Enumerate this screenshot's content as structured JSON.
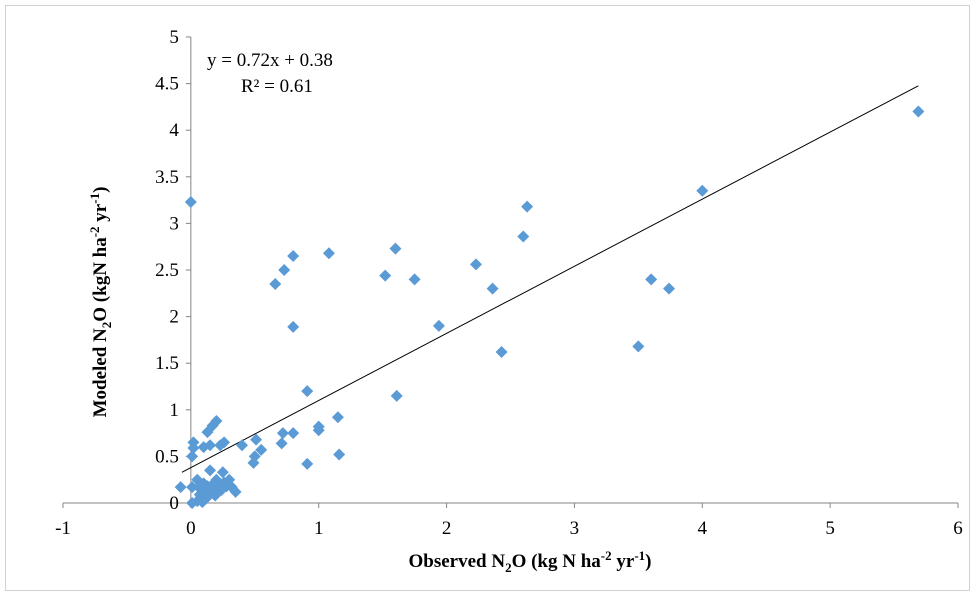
{
  "chart_data": {
    "type": "scatter",
    "xlabel": {
      "main": "Observed N",
      "sub": "2",
      "rest": "O (kg N ha",
      "sup1": "-2",
      "mid": " yr",
      "sup2": "-1",
      "end": ")"
    },
    "ylabel": {
      "main": "Modeled N",
      "sub": "2",
      "rest": "O (kgN ha",
      "sup1": "-2",
      "mid": " yr",
      "sup2": "-1",
      "end": ")"
    },
    "xlim": [
      -1,
      6
    ],
    "ylim": [
      0,
      5
    ],
    "xticks": [
      "-1",
      "0",
      "1",
      "2",
      "3",
      "4",
      "5",
      "6"
    ],
    "yticks": [
      "0",
      "0.5",
      "1",
      "1.5",
      "2",
      "2.5",
      "3",
      "3.5",
      "4",
      "4.5",
      "5"
    ],
    "grid": false,
    "marker_color": "#5b9bd5",
    "trendline": {
      "slope": 0.72,
      "intercept": 0.38,
      "x_range": [
        -0.07,
        5.69
      ],
      "color": "#000000"
    },
    "annotation": {
      "equation": "y = 0.72x + 0.38",
      "r2": "R² = 0.61"
    },
    "series": [
      {
        "points": [
          [
            0.0,
            3.23
          ],
          [
            5.69,
            4.2
          ],
          [
            4.0,
            3.35
          ],
          [
            2.63,
            3.18
          ],
          [
            2.6,
            2.86
          ],
          [
            1.6,
            2.73
          ],
          [
            1.08,
            2.68
          ],
          [
            0.8,
            2.65
          ],
          [
            0.73,
            2.5
          ],
          [
            0.66,
            2.35
          ],
          [
            1.52,
            2.44
          ],
          [
            1.75,
            2.4
          ],
          [
            2.23,
            2.56
          ],
          [
            2.36,
            2.3
          ],
          [
            3.6,
            2.4
          ],
          [
            3.74,
            2.3
          ],
          [
            0.8,
            1.89
          ],
          [
            1.94,
            1.9
          ],
          [
            2.43,
            1.62
          ],
          [
            3.5,
            1.68
          ],
          [
            0.91,
            1.2
          ],
          [
            1.61,
            1.15
          ],
          [
            1.15,
            0.92
          ],
          [
            1.0,
            0.82
          ],
          [
            1.0,
            0.78
          ],
          [
            0.8,
            0.75
          ],
          [
            0.72,
            0.75
          ],
          [
            0.71,
            0.64
          ],
          [
            0.55,
            0.57
          ],
          [
            0.51,
            0.68
          ],
          [
            0.5,
            0.5
          ],
          [
            0.49,
            0.43
          ],
          [
            0.4,
            0.62
          ],
          [
            0.91,
            0.42
          ],
          [
            1.16,
            0.52
          ],
          [
            0.2,
            0.88
          ],
          [
            0.17,
            0.83
          ],
          [
            0.13,
            0.76
          ],
          [
            0.15,
            0.62
          ],
          [
            0.1,
            0.6
          ],
          [
            0.26,
            0.65
          ],
          [
            0.23,
            0.62
          ],
          [
            0.02,
            0.65
          ],
          [
            0.02,
            0.59
          ],
          [
            0.01,
            0.5
          ],
          [
            -0.08,
            0.17
          ],
          [
            0.01,
            0.17
          ],
          [
            0.01,
            0.0
          ],
          [
            0.05,
            0.25
          ],
          [
            0.1,
            0.21
          ],
          [
            0.15,
            0.35
          ],
          [
            0.2,
            0.25
          ],
          [
            0.25,
            0.33
          ],
          [
            0.3,
            0.25
          ],
          [
            0.28,
            0.18
          ],
          [
            0.35,
            0.12
          ],
          [
            0.22,
            0.15
          ],
          [
            0.18,
            0.12
          ],
          [
            0.14,
            0.13
          ],
          [
            0.1,
            0.1
          ],
          [
            0.07,
            0.09
          ],
          [
            0.12,
            0.05
          ],
          [
            0.09,
            0.01
          ],
          [
            0.05,
            0.02
          ],
          [
            0.17,
            0.2
          ],
          [
            0.26,
            0.22
          ],
          [
            0.32,
            0.17
          ],
          [
            0.19,
            0.08
          ],
          [
            0.13,
            0.18
          ],
          [
            0.24,
            0.14
          ],
          [
            0.06,
            0.17
          ]
        ]
      }
    ]
  }
}
